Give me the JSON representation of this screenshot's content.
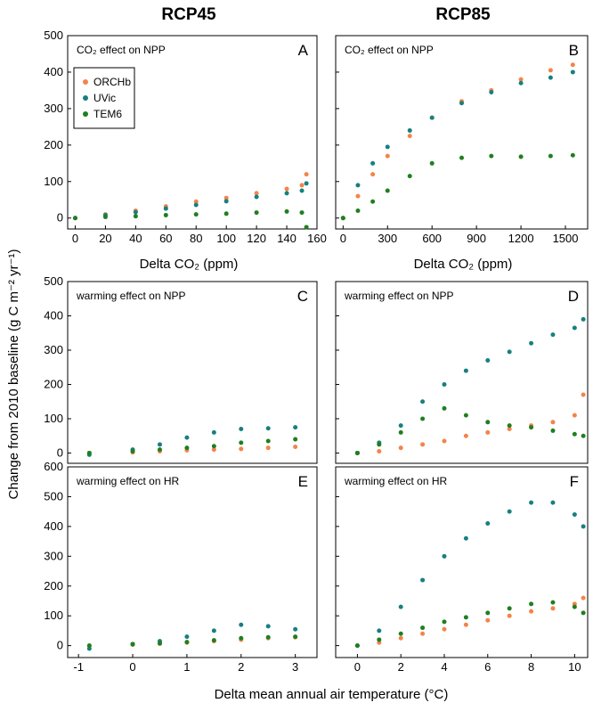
{
  "figure": {
    "column_titles": [
      "RCP45",
      "RCP85"
    ],
    "shared_ylabel": "Change from 2010 baseline (g C m⁻² yr⁻¹)",
    "shared_xlabel": "Delta mean annual air temperature (°C)",
    "legend": [
      {
        "name": "ORCHb",
        "color": "#f4834a"
      },
      {
        "name": "UVic",
        "color": "#17807f"
      },
      {
        "name": "TEM6",
        "color": "#1f7f1f"
      }
    ]
  },
  "chart_data": [
    {
      "id": "A",
      "type": "scatter",
      "title": "CO₂ effect on NPP",
      "letter": "A",
      "xlabel": "Delta CO₂ (ppm)",
      "xlim": [
        -5,
        160
      ],
      "ylim": [
        -30,
        500
      ],
      "xticks": [
        0,
        20,
        40,
        60,
        80,
        100,
        120,
        140,
        160
      ],
      "yticks": [
        0,
        100,
        200,
        300,
        400,
        500
      ],
      "series": [
        {
          "name": "ORCHb",
          "color": "#f4834a",
          "points": [
            [
              0,
              0
            ],
            [
              20,
              10
            ],
            [
              40,
              20
            ],
            [
              60,
              32
            ],
            [
              80,
              45
            ],
            [
              100,
              55
            ],
            [
              120,
              68
            ],
            [
              140,
              80
            ],
            [
              150,
              90
            ],
            [
              153,
              120
            ]
          ]
        },
        {
          "name": "UVic",
          "color": "#17807f",
          "points": [
            [
              0,
              0
            ],
            [
              20,
              8
            ],
            [
              40,
              16
            ],
            [
              60,
              26
            ],
            [
              80,
              36
            ],
            [
              100,
              46
            ],
            [
              120,
              58
            ],
            [
              140,
              68
            ],
            [
              150,
              75
            ],
            [
              153,
              95
            ]
          ]
        },
        {
          "name": "TEM6",
          "color": "#1f7f1f",
          "points": [
            [
              0,
              0
            ],
            [
              20,
              3
            ],
            [
              40,
              5
            ],
            [
              60,
              8
            ],
            [
              80,
              10
            ],
            [
              100,
              12
            ],
            [
              120,
              15
            ],
            [
              140,
              18
            ],
            [
              150,
              15
            ],
            [
              153,
              -25
            ]
          ]
        }
      ]
    },
    {
      "id": "B",
      "type": "scatter",
      "title": "CO₂ effect on NPP",
      "letter": "B",
      "xlabel": "",
      "xlim": [
        -50,
        1650
      ],
      "ylim": [
        -30,
        500
      ],
      "xticks": [
        0,
        300,
        600,
        900,
        1200,
        1500
      ],
      "yticks": [
        0,
        100,
        200,
        300,
        400,
        500
      ],
      "series": [
        {
          "name": "ORCHb",
          "color": "#f4834a",
          "points": [
            [
              0,
              0
            ],
            [
              100,
              60
            ],
            [
              200,
              120
            ],
            [
              300,
              170
            ],
            [
              450,
              225
            ],
            [
              600,
              275
            ],
            [
              800,
              320
            ],
            [
              1000,
              350
            ],
            [
              1200,
              380
            ],
            [
              1400,
              405
            ],
            [
              1550,
              420
            ]
          ]
        },
        {
          "name": "UVic",
          "color": "#17807f",
          "points": [
            [
              0,
              0
            ],
            [
              100,
              90
            ],
            [
              200,
              150
            ],
            [
              300,
              195
            ],
            [
              450,
              240
            ],
            [
              600,
              275
            ],
            [
              800,
              315
            ],
            [
              1000,
              345
            ],
            [
              1200,
              370
            ],
            [
              1400,
              385
            ],
            [
              1550,
              400
            ]
          ]
        },
        {
          "name": "TEM6",
          "color": "#1f7f1f",
          "points": [
            [
              0,
              0
            ],
            [
              100,
              20
            ],
            [
              200,
              45
            ],
            [
              300,
              75
            ],
            [
              450,
              115
            ],
            [
              600,
              150
            ],
            [
              800,
              165
            ],
            [
              1000,
              170
            ],
            [
              1200,
              168
            ],
            [
              1400,
              170
            ],
            [
              1550,
              172
            ]
          ]
        }
      ]
    },
    {
      "id": "C",
      "type": "scatter",
      "title": "warming effect on NPP",
      "letter": "C",
      "xlabel": "",
      "xlim": [
        -1.2,
        3.4
      ],
      "ylim": [
        -30,
        500
      ],
      "xticks": [],
      "yticks": [
        0,
        100,
        200,
        300,
        400,
        500
      ],
      "series": [
        {
          "name": "ORCHb",
          "color": "#f4834a",
          "points": [
            [
              -0.8,
              0
            ],
            [
              0,
              2
            ],
            [
              0.5,
              5
            ],
            [
              1,
              8
            ],
            [
              1.5,
              10
            ],
            [
              2,
              12
            ],
            [
              2.5,
              15
            ],
            [
              3,
              18
            ]
          ]
        },
        {
          "name": "UVic",
          "color": "#17807f",
          "points": [
            [
              -0.8,
              -5
            ],
            [
              0,
              10
            ],
            [
              0.5,
              25
            ],
            [
              1,
              45
            ],
            [
              1.5,
              60
            ],
            [
              2,
              70
            ],
            [
              2.5,
              72
            ],
            [
              3,
              75
            ]
          ]
        },
        {
          "name": "TEM6",
          "color": "#1f7f1f",
          "points": [
            [
              -0.8,
              0
            ],
            [
              0,
              5
            ],
            [
              0.5,
              10
            ],
            [
              1,
              15
            ],
            [
              1.5,
              20
            ],
            [
              2,
              30
            ],
            [
              2.5,
              35
            ],
            [
              3,
              40
            ]
          ]
        }
      ]
    },
    {
      "id": "D",
      "type": "scatter",
      "title": "warming effect on NPP",
      "letter": "D",
      "xlabel": "",
      "xlim": [
        -1,
        10.6
      ],
      "ylim": [
        -30,
        500
      ],
      "xticks": [],
      "yticks": [
        0,
        100,
        200,
        300,
        400,
        500
      ],
      "series": [
        {
          "name": "ORCHb",
          "color": "#f4834a",
          "points": [
            [
              0,
              0
            ],
            [
              1,
              5
            ],
            [
              2,
              15
            ],
            [
              3,
              25
            ],
            [
              4,
              35
            ],
            [
              5,
              50
            ],
            [
              6,
              60
            ],
            [
              7,
              70
            ],
            [
              8,
              80
            ],
            [
              9,
              90
            ],
            [
              10,
              110
            ],
            [
              10.4,
              170
            ]
          ]
        },
        {
          "name": "UVic",
          "color": "#17807f",
          "points": [
            [
              0,
              0
            ],
            [
              1,
              30
            ],
            [
              2,
              80
            ],
            [
              3,
              150
            ],
            [
              4,
              200
            ],
            [
              5,
              240
            ],
            [
              6,
              270
            ],
            [
              7,
              295
            ],
            [
              8,
              320
            ],
            [
              9,
              345
            ],
            [
              10,
              365
            ],
            [
              10.4,
              390
            ]
          ]
        },
        {
          "name": "TEM6",
          "color": "#1f7f1f",
          "points": [
            [
              0,
              0
            ],
            [
              1,
              25
            ],
            [
              2,
              60
            ],
            [
              3,
              100
            ],
            [
              4,
              130
            ],
            [
              5,
              110
            ],
            [
              6,
              90
            ],
            [
              7,
              80
            ],
            [
              8,
              75
            ],
            [
              9,
              65
            ],
            [
              10,
              55
            ],
            [
              10.4,
              50
            ]
          ]
        }
      ]
    },
    {
      "id": "E",
      "type": "scatter",
      "title": "warming effect on HR",
      "letter": "E",
      "xlabel": "",
      "xlim": [
        -1.2,
        3.4
      ],
      "ylim": [
        -40,
        600
      ],
      "xticks": [
        -1,
        0,
        1,
        2,
        3
      ],
      "yticks": [
        0,
        100,
        200,
        300,
        400,
        500,
        600
      ],
      "series": [
        {
          "name": "ORCHb",
          "color": "#f4834a",
          "points": [
            [
              -0.8,
              0
            ],
            [
              0,
              3
            ],
            [
              0.5,
              6
            ],
            [
              1,
              10
            ],
            [
              1.5,
              15
            ],
            [
              2,
              20
            ],
            [
              2.5,
              25
            ],
            [
              3,
              28
            ]
          ]
        },
        {
          "name": "UVic",
          "color": "#17807f",
          "points": [
            [
              -0.8,
              -10
            ],
            [
              0,
              5
            ],
            [
              0.5,
              15
            ],
            [
              1,
              30
            ],
            [
              1.5,
              50
            ],
            [
              2,
              70
            ],
            [
              2.5,
              65
            ],
            [
              3,
              55
            ]
          ]
        },
        {
          "name": "TEM6",
          "color": "#1f7f1f",
          "points": [
            [
              -0.8,
              0
            ],
            [
              0,
              5
            ],
            [
              0.5,
              8
            ],
            [
              1,
              12
            ],
            [
              1.5,
              18
            ],
            [
              2,
              25
            ],
            [
              2.5,
              28
            ],
            [
              3,
              30
            ]
          ]
        }
      ]
    },
    {
      "id": "F",
      "type": "scatter",
      "title": "warming effect on HR",
      "letter": "F",
      "xlabel": "",
      "xlim": [
        -1,
        10.6
      ],
      "ylim": [
        -40,
        600
      ],
      "xticks": [
        0,
        2,
        4,
        6,
        8,
        10
      ],
      "yticks": [
        0,
        100,
        200,
        300,
        400,
        500
      ],
      "series": [
        {
          "name": "ORCHb",
          "color": "#f4834a",
          "points": [
            [
              0,
              0
            ],
            [
              1,
              10
            ],
            [
              2,
              25
            ],
            [
              3,
              40
            ],
            [
              4,
              55
            ],
            [
              5,
              70
            ],
            [
              6,
              85
            ],
            [
              7,
              100
            ],
            [
              8,
              115
            ],
            [
              9,
              125
            ],
            [
              10,
              140
            ],
            [
              10.4,
              160
            ]
          ]
        },
        {
          "name": "UVic",
          "color": "#17807f",
          "points": [
            [
              0,
              0
            ],
            [
              1,
              50
            ],
            [
              2,
              130
            ],
            [
              3,
              220
            ],
            [
              4,
              300
            ],
            [
              5,
              360
            ],
            [
              6,
              410
            ],
            [
              7,
              450
            ],
            [
              8,
              480
            ],
            [
              9,
              480
            ],
            [
              10,
              440
            ],
            [
              10.4,
              400
            ]
          ]
        },
        {
          "name": "TEM6",
          "color": "#1f7f1f",
          "points": [
            [
              0,
              0
            ],
            [
              1,
              20
            ],
            [
              2,
              40
            ],
            [
              3,
              60
            ],
            [
              4,
              80
            ],
            [
              5,
              95
            ],
            [
              6,
              110
            ],
            [
              7,
              125
            ],
            [
              8,
              140
            ],
            [
              9,
              145
            ],
            [
              10,
              130
            ],
            [
              10.4,
              110
            ]
          ]
        }
      ]
    }
  ]
}
